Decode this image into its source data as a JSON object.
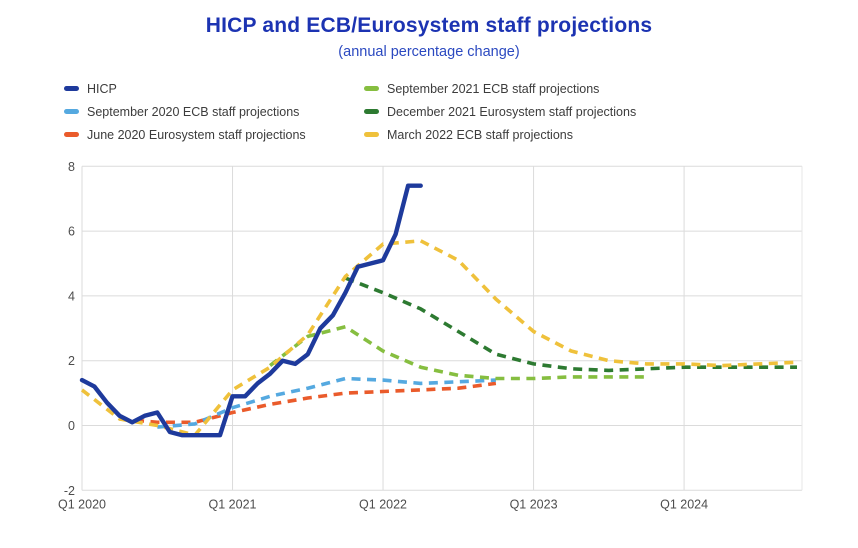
{
  "header": {
    "title": "HICP and ECB/Eurosystem staff projections",
    "subtitle": "(annual percentage change)"
  },
  "legend": {
    "columns": [
      [
        {
          "label": "HICP",
          "color": "#1e3a9c"
        },
        {
          "label": "September 2020 ECB staff projections",
          "color": "#55a9e0"
        },
        {
          "label": "June 2020 Eurosystem staff projections",
          "color": "#ea5b2b"
        }
      ],
      [
        {
          "label": "September 2021 ECB staff projections",
          "color": "#86be40"
        },
        {
          "label": "December 2021 Eurosystem staff projections",
          "color": "#2d7a31"
        },
        {
          "label": "March 2022 ECB staff projections",
          "color": "#efc13b"
        }
      ]
    ]
  },
  "chart_data": {
    "type": "line",
    "title": "HICP and ECB/Eurosystem staff projections",
    "subtitle": "(annual percentage change)",
    "xlabel": "",
    "ylabel": "",
    "ylim": [
      -2,
      8
    ],
    "yticks": [
      -2,
      0,
      2,
      4,
      6,
      8
    ],
    "grid": true,
    "legend_position": "top",
    "x_axis": {
      "unit": "quarters since 2020-Q1",
      "tick_labels": [
        "Q1 2020",
        "Q1 2021",
        "Q1 2022",
        "Q1 2023",
        "Q1 2024"
      ],
      "tick_quarter_indices": [
        0,
        4,
        8,
        12,
        16
      ],
      "range_end_quarter": "2024-Q4"
    },
    "series": [
      {
        "name": "June 2020 Eurosystem staff projections",
        "color": "#ea5b2b",
        "line_style": "dashed",
        "frequency": "quarterly",
        "start": "2020-Q2",
        "values": [
          0.2,
          0.1,
          0.1,
          0.4,
          0.65,
          0.85,
          1.0,
          1.05,
          1.1,
          1.15,
          1.3
        ]
      },
      {
        "name": "September 2020 ECB staff projections",
        "color": "#55a9e0",
        "line_style": "dashed",
        "frequency": "quarterly",
        "start": "2020-Q3",
        "values": [
          -0.05,
          0.05,
          0.55,
          0.9,
          1.15,
          1.45,
          1.4,
          1.3,
          1.35,
          1.4
        ]
      },
      {
        "name": "September 2021 ECB staff projections",
        "color": "#86be40",
        "line_style": "dashed",
        "frequency": "quarterly",
        "start": "2021-Q2",
        "values": [
          1.85,
          2.75,
          3.05,
          2.3,
          1.8,
          1.55,
          1.45,
          1.45,
          1.5,
          1.5,
          1.5
        ]
      },
      {
        "name": "December 2021 Eurosystem staff projections",
        "color": "#2d7a31",
        "line_style": "dashed",
        "frequency": "quarterly",
        "start": "2021-Q4",
        "values": [
          4.55,
          4.1,
          3.6,
          2.9,
          2.2,
          1.9,
          1.75,
          1.7,
          1.75,
          1.8,
          1.8,
          1.8,
          1.8
        ]
      },
      {
        "name": "March 2022 ECB staff projections",
        "color": "#efc13b",
        "line_style": "dashed",
        "frequency": "quarterly",
        "start": "2020-Q1",
        "values": [
          1.1,
          0.2,
          0.0,
          -0.3,
          1.1,
          1.8,
          2.8,
          4.6,
          5.6,
          5.7,
          5.1,
          3.9,
          2.9,
          2.3,
          2.0,
          1.9,
          1.9,
          1.85,
          1.9,
          1.95
        ]
      },
      {
        "name": "HICP",
        "color": "#1e3a9c",
        "line_style": "solid",
        "frequency": "monthly",
        "start": "2020-01",
        "values": [
          1.4,
          1.2,
          0.7,
          0.3,
          0.1,
          0.3,
          0.4,
          -0.2,
          -0.3,
          -0.3,
          -0.3,
          -0.3,
          0.9,
          0.9,
          1.3,
          1.6,
          2.0,
          1.9,
          2.2,
          3.0,
          3.4,
          4.1,
          4.9,
          5.0,
          5.1,
          5.9,
          7.4,
          7.4
        ]
      }
    ]
  }
}
